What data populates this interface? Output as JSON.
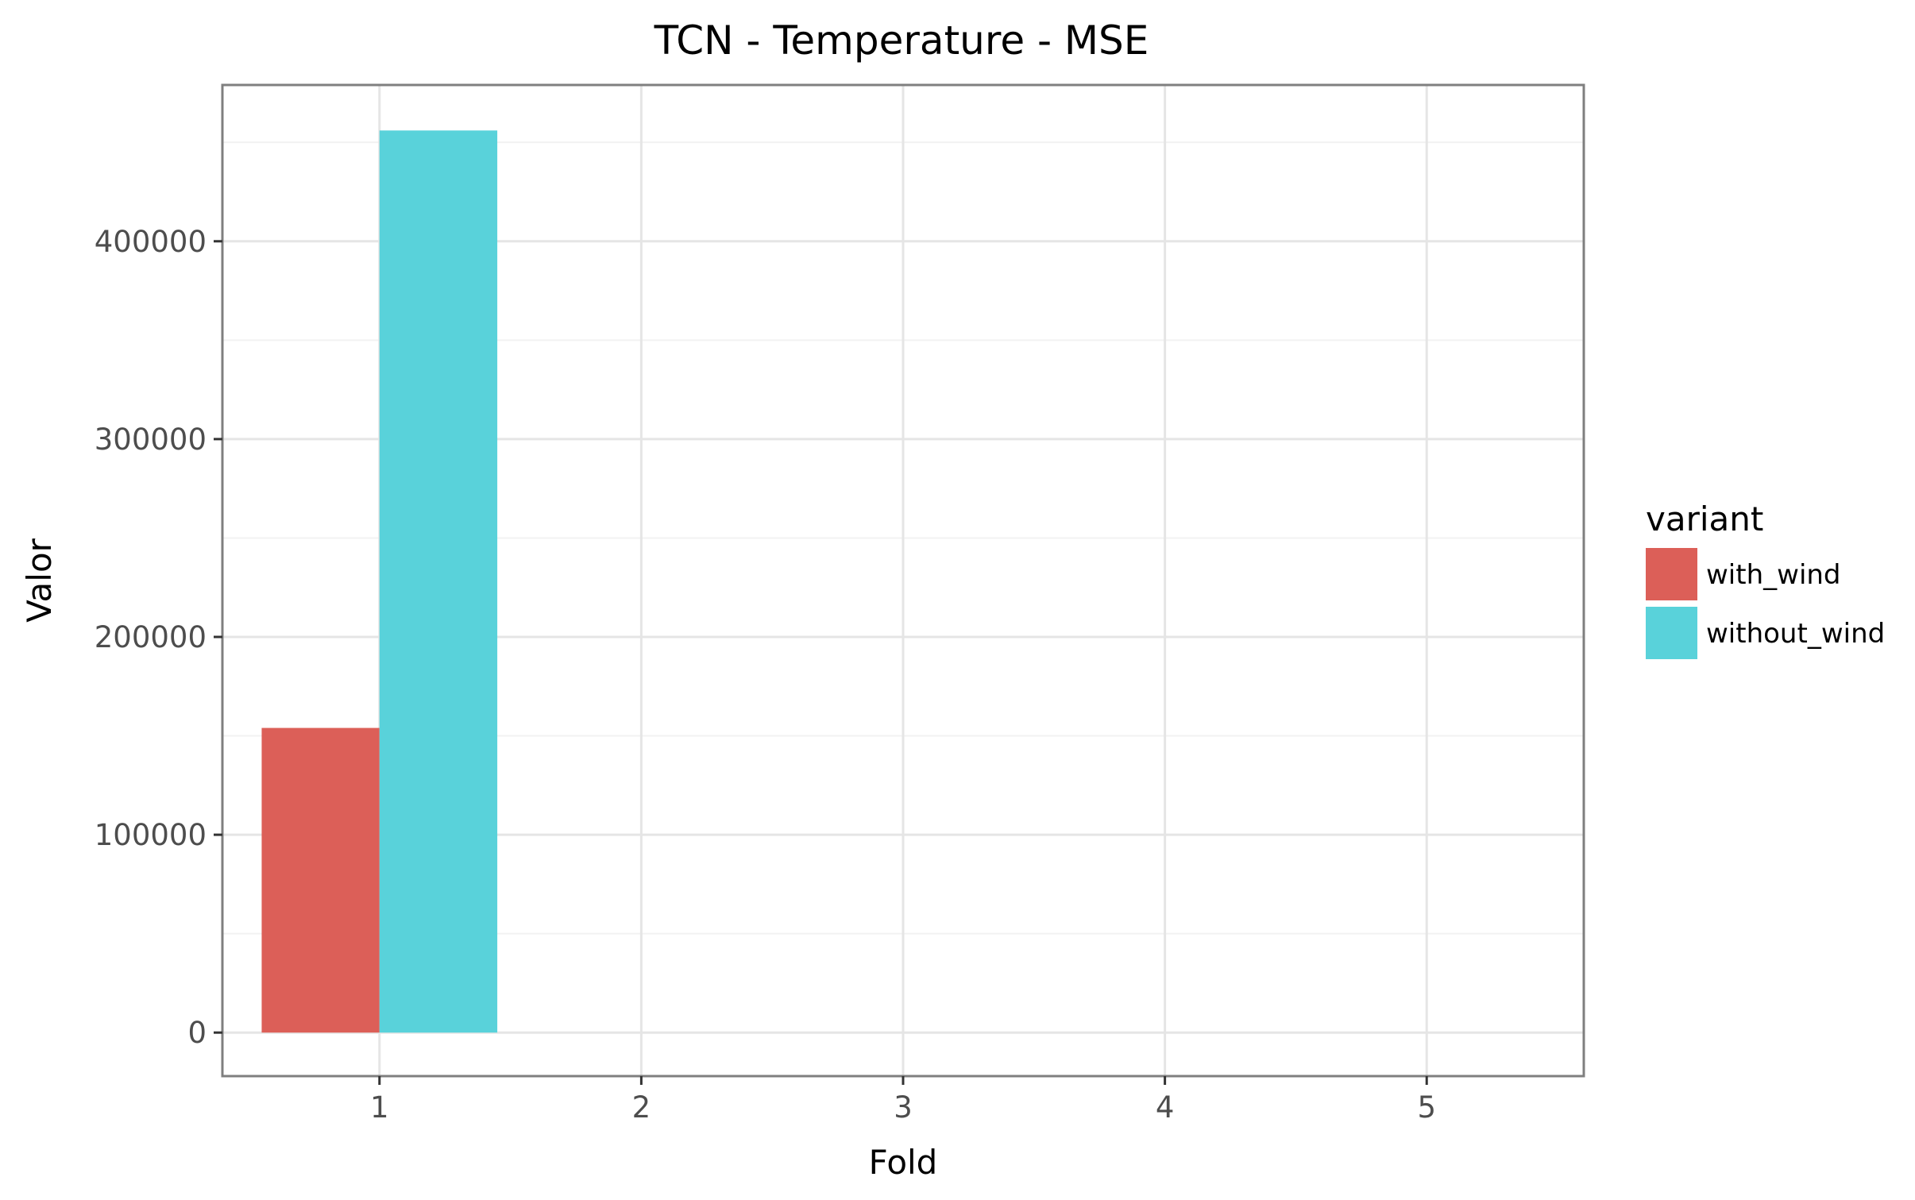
{
  "chart_data": {
    "type": "bar",
    "title": "TCN - Temperature - MSE",
    "xlabel": "Fold",
    "ylabel": "Valor",
    "categories": [
      "1",
      "2",
      "3",
      "4",
      "5"
    ],
    "series": [
      {
        "name": "with_wind",
        "color": "#dc5f58",
        "values": [
          154000,
          0,
          0,
          0,
          0
        ]
      },
      {
        "name": "without_wind",
        "color": "#59d2da",
        "values": [
          456000,
          0,
          0,
          0,
          0
        ]
      }
    ],
    "yticks": [
      0,
      100000,
      200000,
      300000,
      400000
    ],
    "ytick_labels": [
      "0",
      "100000",
      "200000",
      "300000",
      "400000"
    ],
    "ylim": [
      -22000,
      479000
    ],
    "xlim": [
      0.4,
      5.6
    ],
    "grid": true,
    "legend": {
      "title": "variant",
      "position": "right"
    }
  }
}
